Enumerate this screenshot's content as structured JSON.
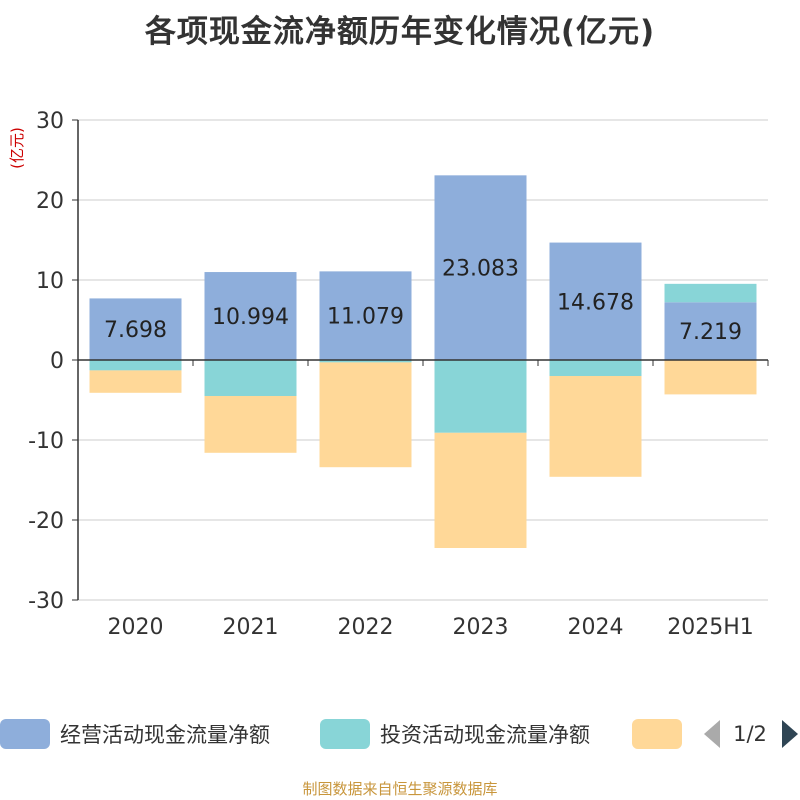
{
  "chart_data": {
    "type": "bar",
    "stacked": true,
    "title": "各项现金流净额历年变化情况(亿元)",
    "unit_label": "(亿元)",
    "categories": [
      "2020",
      "2021",
      "2022",
      "2023",
      "2024",
      "2025H1"
    ],
    "ylim": [
      -30,
      30
    ],
    "yticks": [
      30,
      20,
      10,
      0,
      -10,
      -20,
      -30
    ],
    "grid": true,
    "legend_position": "bottom",
    "series": [
      {
        "name": "经营活动现金流量净额",
        "color": "#8eaedb",
        "values": [
          7.698,
          10.994,
          11.079,
          23.083,
          14.678,
          7.219
        ],
        "labels": [
          "7.698",
          "10.994",
          "11.079",
          "23.083",
          "14.678",
          "7.219"
        ]
      },
      {
        "name": "投资活动现金流量净额",
        "color": "#88d5d7",
        "values": [
          -1.3,
          -4.5,
          -0.3,
          -9.1,
          -2.0,
          2.3
        ]
      },
      {
        "name": "",
        "color": "#ffd898",
        "values": [
          -2.8,
          -7.1,
          -13.1,
          -14.4,
          -12.6,
          -4.3
        ]
      }
    ]
  },
  "legend": {
    "page_indicator": "1/2"
  },
  "source_note": "制图数据来自恒生聚源数据库"
}
